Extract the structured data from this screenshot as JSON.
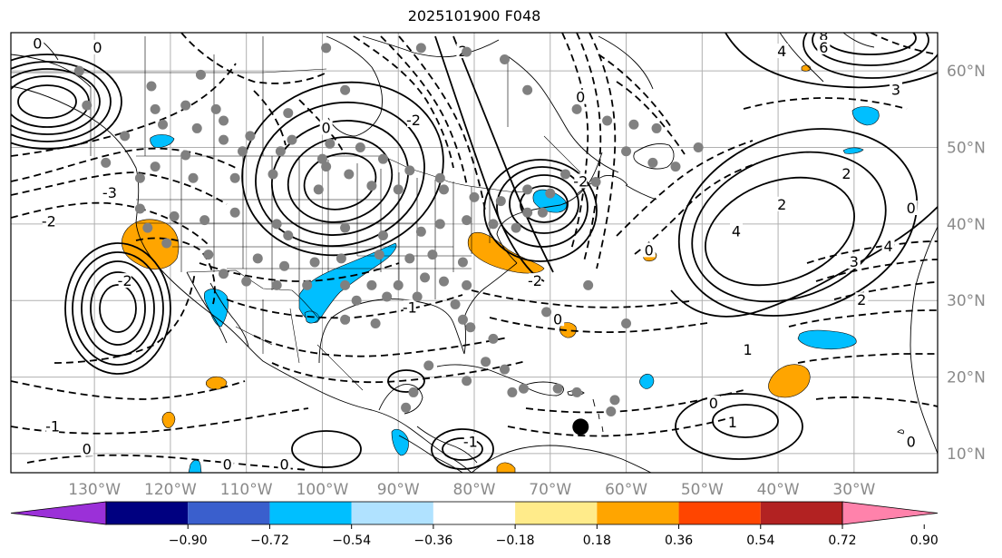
{
  "title": "2025101900 F048",
  "map": {
    "projection": "plate-carree",
    "lon_range": [
      -141,
      -19
    ],
    "lat_range": [
      7.5,
      65
    ],
    "lon_labels": [
      "130°W",
      "120°W",
      "110°W",
      "100°W",
      "90°W",
      "80°W",
      "70°W",
      "60°W",
      "50°W",
      "40°W",
      "30°W"
    ],
    "lat_labels": [
      "60°N",
      "50°N",
      "40°N",
      "30°N",
      "20°N",
      "10°N"
    ],
    "grid": true,
    "contour_labels": [
      {
        "text": "0",
        "lon": -137.5,
        "lat": 63.5
      },
      {
        "text": "0",
        "lon": -129.6,
        "lat": 63.0
      },
      {
        "text": "-3",
        "lon": -128.0,
        "lat": 44.0
      },
      {
        "text": "-2",
        "lon": -136.0,
        "lat": 40.3
      },
      {
        "text": "-2",
        "lon": -126.0,
        "lat": 32.5
      },
      {
        "text": "-1",
        "lon": -135.5,
        "lat": 13.5
      },
      {
        "text": "0",
        "lon": -131.0,
        "lat": 10.5
      },
      {
        "text": "0",
        "lon": -112.5,
        "lat": 8.5
      },
      {
        "text": "0",
        "lon": -105.0,
        "lat": 8.5
      },
      {
        "text": "-1",
        "lon": -80.5,
        "lat": 11.5
      },
      {
        "text": "-2",
        "lon": -72.0,
        "lat": 32.5
      },
      {
        "text": "0",
        "lon": -69.0,
        "lat": 27.5
      },
      {
        "text": "0",
        "lon": -57.0,
        "lat": 36.5
      },
      {
        "text": "2",
        "lon": -39.5,
        "lat": 42.5
      },
      {
        "text": "4",
        "lon": -39.5,
        "lat": 62.5
      },
      {
        "text": "8",
        "lon": -34.0,
        "lat": 64.5
      },
      {
        "text": "6",
        "lon": -34.0,
        "lat": 63.0
      },
      {
        "text": "3",
        "lon": -24.5,
        "lat": 57.5
      },
      {
        "text": "2",
        "lon": -31.0,
        "lat": 46.5
      },
      {
        "text": "0",
        "lon": -22.5,
        "lat": 42.0
      },
      {
        "text": "4",
        "lon": -45.5,
        "lat": 39.0
      },
      {
        "text": "3",
        "lon": -30.0,
        "lat": 35.0
      },
      {
        "text": "4",
        "lon": -25.5,
        "lat": 37.0
      },
      {
        "text": "2",
        "lon": -29.0,
        "lat": 30.0
      },
      {
        "text": "1",
        "lon": -44.0,
        "lat": 23.5
      },
      {
        "text": "0",
        "lon": -48.5,
        "lat": 16.5
      },
      {
        "text": "1",
        "lon": -46.0,
        "lat": 14.0
      },
      {
        "text": "0",
        "lon": -22.5,
        "lat": 11.5
      },
      {
        "text": "0",
        "lon": -99.5,
        "lat": 52.5
      },
      {
        "text": "-2",
        "lon": -88.0,
        "lat": 53.5
      },
      {
        "text": "-1",
        "lon": -88.5,
        "lat": 29.0
      },
      {
        "text": "0",
        "lon": -66.0,
        "lat": 56.5
      },
      {
        "text": "-2",
        "lon": -66.0,
        "lat": 45.5
      },
      {
        "text": "2",
        "lon": -81.5,
        "lat": 62.5
      }
    ],
    "gray_dots": [
      [
        -99.5,
        63.0
      ],
      [
        -87.0,
        63.0
      ],
      [
        -81.0,
        62.5
      ],
      [
        -76.0,
        61.5
      ],
      [
        -132.0,
        60.0
      ],
      [
        -116.0,
        59.5
      ],
      [
        -122.5,
        58.0
      ],
      [
        -97.0,
        57.5
      ],
      [
        -73.0,
        57.5
      ],
      [
        -131.0,
        55.5
      ],
      [
        -122.0,
        55.0
      ],
      [
        -118.0,
        55.5
      ],
      [
        -114.0,
        55.0
      ],
      [
        -113.0,
        53.5
      ],
      [
        -104.5,
        54.5
      ],
      [
        -121.0,
        53.0
      ],
      [
        -116.5,
        52.5
      ],
      [
        -113.0,
        51.0
      ],
      [
        -109.5,
        51.5
      ],
      [
        -126.0,
        51.5
      ],
      [
        -104.0,
        51.0
      ],
      [
        -99.0,
        50.5
      ],
      [
        -95.0,
        50.0
      ],
      [
        -100.0,
        48.5
      ],
      [
        -92.0,
        48.5
      ],
      [
        -128.5,
        48.0
      ],
      [
        -118.0,
        49.0
      ],
      [
        -122.0,
        47.5
      ],
      [
        -110.5,
        49.5
      ],
      [
        -105.5,
        49.5
      ],
      [
        -99.5,
        47.5
      ],
      [
        -96.5,
        46.5
      ],
      [
        -88.5,
        47.0
      ],
      [
        -93.5,
        45.0
      ],
      [
        -84.5,
        46.0
      ],
      [
        -124.0,
        46.0
      ],
      [
        -117.0,
        46.0
      ],
      [
        -111.5,
        46.0
      ],
      [
        -106.5,
        46.5
      ],
      [
        -100.5,
        44.5
      ],
      [
        -90.0,
        44.5
      ],
      [
        -84.0,
        44.5
      ],
      [
        -80.0,
        43.5
      ],
      [
        -76.5,
        43.0
      ],
      [
        -73.0,
        44.5
      ],
      [
        -70.0,
        44.0
      ],
      [
        -68.0,
        46.5
      ],
      [
        -64.0,
        45.5
      ],
      [
        -60.0,
        49.5
      ],
      [
        -56.5,
        48.0
      ],
      [
        -53.5,
        47.5
      ],
      [
        -50.5,
        50.0
      ],
      [
        -62.5,
        53.5
      ],
      [
        -59.0,
        53.0
      ],
      [
        -56.0,
        52.5
      ],
      [
        -66.5,
        55.0
      ],
      [
        -124.0,
        42.0
      ],
      [
        -119.5,
        41.0
      ],
      [
        -115.5,
        40.5
      ],
      [
        -111.5,
        41.5
      ],
      [
        -106.0,
        40.0
      ],
      [
        -104.5,
        38.5
      ],
      [
        -97.0,
        39.5
      ],
      [
        -92.0,
        38.5
      ],
      [
        -87.0,
        39.0
      ],
      [
        -84.5,
        40.0
      ],
      [
        -81.0,
        40.5
      ],
      [
        -77.5,
        40.0
      ],
      [
        -74.5,
        39.5
      ],
      [
        -73.0,
        41.5
      ],
      [
        -71.0,
        41.5
      ],
      [
        -115.0,
        36.0
      ],
      [
        -108.5,
        35.5
      ],
      [
        -105.0,
        34.5
      ],
      [
        -101.0,
        35.0
      ],
      [
        -97.5,
        35.5
      ],
      [
        -92.5,
        36.0
      ],
      [
        -88.5,
        35.5
      ],
      [
        -85.5,
        36.0
      ],
      [
        -81.5,
        35.0
      ],
      [
        -120.5,
        37.5
      ],
      [
        -123.0,
        39.5
      ],
      [
        -113.0,
        33.5
      ],
      [
        -110.0,
        32.5
      ],
      [
        -106.0,
        32.0
      ],
      [
        -102.0,
        32.0
      ],
      [
        -97.0,
        32.0
      ],
      [
        -93.5,
        32.0
      ],
      [
        -90.0,
        32.0
      ],
      [
        -86.5,
        33.0
      ],
      [
        -84.0,
        32.5
      ],
      [
        -81.0,
        32.0
      ],
      [
        -95.5,
        30.0
      ],
      [
        -91.5,
        30.5
      ],
      [
        -87.5,
        30.5
      ],
      [
        -82.5,
        29.5
      ],
      [
        -81.5,
        27.5
      ],
      [
        -80.5,
        26.5
      ],
      [
        -97.0,
        27.5
      ],
      [
        -93.0,
        27.0
      ],
      [
        -70.5,
        28.5
      ],
      [
        -65.0,
        32.0
      ],
      [
        -77.5,
        25.0
      ],
      [
        -78.5,
        22.0
      ],
      [
        -86.0,
        21.5
      ],
      [
        -81.0,
        19.5
      ],
      [
        -73.5,
        18.5
      ],
      [
        -69.0,
        18.5
      ],
      [
        -66.5,
        18.0
      ],
      [
        -61.5,
        17.0
      ],
      [
        -62.0,
        15.5
      ],
      [
        -66.0,
        13.5
      ],
      [
        -75.0,
        18.0
      ],
      [
        -88.0,
        18.0
      ],
      [
        -89.0,
        16.0
      ],
      [
        -60.0,
        27.0
      ],
      [
        -76.0,
        21.0
      ]
    ],
    "black_dot": [
      -66.0,
      13.5
    ]
  },
  "colorbar": {
    "ticks": [
      "−0.90",
      "−0.72",
      "−0.54",
      "−0.36",
      "−0.18",
      "0.18",
      "0.36",
      "0.54",
      "0.72",
      "0.90"
    ],
    "colors": [
      "#9b30d8",
      "#000080",
      "#3a5fcd",
      "#00bfff",
      "#b0e2ff",
      "#ffffff",
      "#ffeb8a",
      "#ffa500",
      "#ff4500",
      "#b22222",
      "#ff82ab"
    ],
    "extend": "both"
  }
}
